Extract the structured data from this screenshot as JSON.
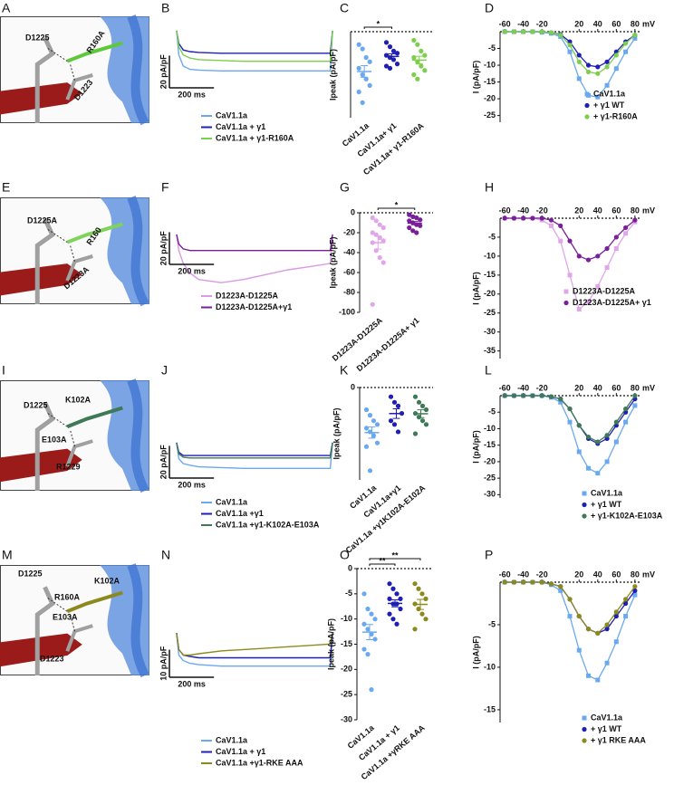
{
  "letters": [
    "A",
    "B",
    "C",
    "D",
    "E",
    "F",
    "G",
    "H",
    "I",
    "J",
    "K",
    "L",
    "M",
    "N",
    "O",
    "P"
  ],
  "structures": [
    {
      "labels": [
        {
          "text": "D1225",
          "color": "#111111"
        },
        {
          "text": "R160A",
          "color": "#5cc93a"
        },
        {
          "text": "D1223",
          "color": "#111111"
        }
      ]
    },
    {
      "labels": [
        {
          "text": "D1225A",
          "color": "#d67ee0"
        },
        {
          "text": "R160",
          "color": "#111111"
        },
        {
          "text": "D1223A",
          "color": "#d67ee0"
        }
      ]
    },
    {
      "labels": [
        {
          "text": "D1225",
          "color": "#111111"
        },
        {
          "text": "K102A",
          "color": "#3e7a55"
        },
        {
          "text": "E103A",
          "color": "#3e8a8a"
        },
        {
          "text": "R1229",
          "color": "#111111"
        }
      ]
    },
    {
      "labels": [
        {
          "text": "D1225",
          "color": "#111111"
        },
        {
          "text": "K102A",
          "color": "#8c8a1e"
        },
        {
          "text": "R160A",
          "color": "#8c8a1e"
        },
        {
          "text": "E103A",
          "color": "#8c8a1e"
        },
        {
          "text": "D1223",
          "color": "#111111"
        }
      ]
    }
  ],
  "chart_data": [
    {
      "type": "trace",
      "x": [
        0,
        10,
        30,
        60,
        100,
        200,
        300,
        400,
        500,
        600,
        690,
        700
      ],
      "xlim": [
        -20,
        720
      ],
      "ylim": [
        -40,
        5
      ],
      "scale_bar": {
        "y": 20,
        "y_label": "20 pA/pF",
        "x": 200,
        "x_label": "200 ms"
      },
      "series": [
        {
          "name": "CaV1.1a",
          "color": "#6aa9f0",
          "values": [
            0,
            -15,
            -22,
            -24,
            -24.5,
            -25,
            -25,
            -25,
            -25,
            -25,
            -25,
            0
          ]
        },
        {
          "name": "CaV1.1a + γ1",
          "color": "#1f1fb5",
          "values": [
            0,
            -8,
            -12,
            -13,
            -13.5,
            -14,
            -14,
            -14,
            -14,
            -14,
            -14,
            0
          ]
        },
        {
          "name": "CaV1.1a + γ1-R160A",
          "color": "#7ccf4a",
          "values": [
            0,
            -10,
            -15,
            -17,
            -18,
            -18.5,
            -19,
            -19,
            -19,
            -19,
            -19,
            0
          ]
        }
      ]
    },
    {
      "type": "strip",
      "ylabel": "Ipeak (pA/pF)",
      "ylim": [
        -40,
        0
      ],
      "zero_line": true,
      "categories": [
        "CaV1.1a",
        "CaV1.1a+ γ1",
        "CaV1.1a+ γ1-R160A"
      ],
      "colors": [
        "#6aa9f0",
        "#1f1fb5",
        "#7ccf4a"
      ],
      "points": [
        [
          -6,
          -8,
          -12,
          -14,
          -17,
          -20,
          -22,
          -25,
          -28,
          -33
        ],
        [
          -5,
          -7,
          -9,
          -10,
          -11,
          -12,
          -13,
          -15,
          -16,
          -17
        ],
        [
          -4,
          -6,
          -9,
          -11,
          -12,
          -14,
          -16,
          -18,
          -20,
          -22
        ]
      ],
      "means": [
        -18.5,
        -11.5,
        -13.2
      ],
      "sems": [
        2.7,
        1.2,
        1.8
      ],
      "significance": [
        {
          "label": "*",
          "between": [
            "CaV1.1a",
            "CaV1.1a+ γ1"
          ]
        }
      ]
    },
    {
      "type": "line",
      "ylabel": "I (pA/pF)",
      "xlabel": "mV",
      "xlim": [
        -65,
        85
      ],
      "ylim": [
        -27,
        0
      ],
      "xticks": [
        -60,
        -40,
        -20,
        20,
        40,
        60,
        80
      ],
      "yticks": [
        -5,
        -10,
        -15,
        -20,
        -25
      ],
      "x": [
        -60,
        -50,
        -40,
        -30,
        -20,
        -10,
        0,
        10,
        20,
        30,
        40,
        50,
        60,
        70,
        80
      ],
      "series": [
        {
          "name": "CaV1.1a",
          "color": "#6aa9f0",
          "marker": "square",
          "values": [
            0,
            0,
            0,
            0,
            -0.2,
            -0.5,
            -1.5,
            -6,
            -14,
            -19,
            -19.5,
            -16,
            -11,
            -6,
            -2
          ]
        },
        {
          "name": "+ γ1 WT",
          "color": "#1f1fb5",
          "marker": "circle",
          "values": [
            0,
            0,
            0,
            0,
            0,
            -0.3,
            -0.8,
            -3,
            -7,
            -10,
            -10.5,
            -9,
            -6,
            -3,
            -1
          ]
        },
        {
          "name": "+ γ1-R160A",
          "color": "#7ccf4a",
          "marker": "circle",
          "values": [
            0,
            0,
            0,
            0,
            0,
            -0.3,
            -1,
            -4,
            -9,
            -12,
            -12.5,
            -10.5,
            -7,
            -3.5,
            -1
          ]
        }
      ]
    },
    {
      "type": "trace",
      "x": [
        0,
        10,
        30,
        60,
        100,
        200,
        300,
        400,
        500,
        600,
        690,
        700
      ],
      "xlim": [
        -20,
        720
      ],
      "ylim": [
        -40,
        5
      ],
      "scale_bar": {
        "y": 20,
        "y_label": "20 pA/pF",
        "x": 200,
        "x_label": "200 ms"
      },
      "series": [
        {
          "name": "D1223A-D1225A",
          "color": "#d99ae3",
          "values": [
            0,
            -10,
            -18,
            -24,
            -28,
            -30,
            -28,
            -25,
            -22,
            -20,
            -18,
            0
          ]
        },
        {
          "name": "D1223A-D1225A+γ1",
          "color": "#7a1f9a",
          "values": [
            0,
            -6,
            -9,
            -10,
            -10,
            -10,
            -10,
            -10,
            -10,
            -10,
            -10,
            0
          ]
        }
      ]
    },
    {
      "type": "strip",
      "ylabel": "Ipeak (pA/pF)",
      "ylim": [
        -100,
        0
      ],
      "yticks": [
        0,
        -20,
        -40,
        -60,
        -80,
        -100
      ],
      "zero_line": true,
      "categories": [
        "D1223A-D1225A",
        "D1223A-D1225A+ γ1"
      ],
      "colors": [
        "#e0a6ea",
        "#7a1f9a"
      ],
      "points": [
        [
          -5,
          -8,
          -12,
          -15,
          -20,
          -22,
          -25,
          -28,
          -30,
          -38,
          -45,
          -50,
          -92
        ],
        [
          -2,
          -4,
          -5,
          -7,
          -8,
          -10,
          -12,
          -13,
          -15,
          -18,
          -20
        ]
      ],
      "means": [
        -30,
        -10.4
      ],
      "sems": [
        6.5,
        1.7
      ],
      "significance": [
        {
          "label": "*",
          "between": [
            "D1223A-D1225A",
            "D1223A-D1225A+ γ1"
          ]
        }
      ]
    },
    {
      "type": "line",
      "ylabel": "I (pA/pF)",
      "xlabel": "mV",
      "xlim": [
        -65,
        85
      ],
      "ylim": [
        -37,
        0
      ],
      "xticks": [
        -60,
        -40,
        -20,
        20,
        40,
        60,
        80
      ],
      "yticks": [
        -5,
        -10,
        -15,
        -20,
        -25,
        -30,
        -35
      ],
      "x": [
        -60,
        -50,
        -40,
        -30,
        -20,
        -10,
        0,
        10,
        20,
        30,
        40,
        50,
        60,
        70,
        80
      ],
      "series": [
        {
          "name": "D1223A-D1225A",
          "color": "#e0a6ea",
          "marker": "square",
          "values": [
            0,
            0,
            0,
            0,
            -0.5,
            -2,
            -6,
            -15,
            -24,
            -22,
            -18,
            -13,
            -8,
            -4,
            -1
          ]
        },
        {
          "name": "D1223A-D1225A+ γ1",
          "color": "#7a1f9a",
          "marker": "circle",
          "values": [
            0,
            0,
            0,
            0,
            0,
            -0.5,
            -2,
            -6,
            -10,
            -11,
            -10,
            -8,
            -5,
            -2.5,
            -0.5
          ]
        }
      ]
    },
    {
      "type": "trace",
      "x": [
        0,
        10,
        30,
        60,
        100,
        200,
        300,
        400,
        500,
        600,
        690,
        700
      ],
      "xlim": [
        -20,
        720
      ],
      "ylim": [
        -40,
        5
      ],
      "scale_bar": {
        "y": 20,
        "y_label": "20 pA/pF",
        "x": 200,
        "x_label": "200 ms"
      },
      "series": [
        {
          "name": "CaV1.1a",
          "color": "#6aa9f0",
          "values": [
            0,
            -10,
            -13,
            -14,
            -15,
            -15.5,
            -16,
            -16,
            -16,
            -16,
            -16,
            0
          ]
        },
        {
          "name": "CaV1.1a +γ1",
          "color": "#1f1fb5",
          "values": [
            0,
            -6,
            -8,
            -8,
            -8,
            -8,
            -8,
            -8,
            -8,
            -8,
            -8,
            0
          ]
        },
        {
          "name": "CaV1.1a +γ1-K102A-E103A",
          "color": "#3e7a55",
          "values": [
            0,
            -7,
            -9,
            -9.5,
            -9.5,
            -9.5,
            -9.5,
            -9.5,
            -9.5,
            -9.5,
            -9.5,
            0
          ]
        }
      ]
    },
    {
      "type": "strip",
      "ylabel": "Ipeak (pA/pF)",
      "ylim": [
        -50,
        0
      ],
      "yticks": [
        0
      ],
      "zero_line": true,
      "categories": [
        "CaV1.1a",
        "CaV1.1a+γ1",
        "CaV1.1a +γ1K102A-E102A"
      ],
      "colors": [
        "#6aa9f0",
        "#1f1fb5",
        "#3e7a55"
      ],
      "points": [
        [
          -12,
          -15,
          -18,
          -20,
          -22,
          -24,
          -26,
          -30,
          -32,
          -45
        ],
        [
          -5,
          -8,
          -10,
          -14,
          -18,
          -20,
          -24
        ],
        [
          -5,
          -8,
          -10,
          -12,
          -14,
          -16,
          -18,
          -20,
          -25
        ]
      ],
      "means": [
        -24.4,
        -14.1,
        -14.2
      ],
      "sems": [
        3,
        2.6,
        2.1
      ],
      "significance": []
    },
    {
      "type": "line",
      "ylabel": "I (pA/pF)",
      "xlabel": "mV",
      "xlim": [
        -65,
        85
      ],
      "ylim": [
        -31,
        0
      ],
      "xticks": [
        -60,
        -40,
        -20,
        20,
        40,
        60,
        80
      ],
      "yticks": [
        -5,
        -10,
        -15,
        -20,
        -25,
        -30
      ],
      "x": [
        -60,
        -50,
        -40,
        -30,
        -20,
        -10,
        0,
        10,
        20,
        30,
        40,
        50,
        60,
        70,
        80
      ],
      "series": [
        {
          "name": "CaV1.1a",
          "color": "#6aa9f0",
          "marker": "square",
          "values": [
            0,
            0,
            0,
            0,
            0,
            -0.5,
            -2,
            -8,
            -17,
            -22,
            -23.5,
            -20,
            -14,
            -8,
            -3
          ]
        },
        {
          "name": "+ γ1 WT",
          "color": "#1f1fb5",
          "marker": "circle",
          "values": [
            0,
            0,
            0,
            0,
            0,
            -0.3,
            -1,
            -4,
            -9,
            -13,
            -14.5,
            -13,
            -9,
            -5,
            -1
          ]
        },
        {
          "name": "+ γ1-K102A-E103A",
          "color": "#3e7a55",
          "marker": "circle",
          "values": [
            0,
            0,
            0,
            0,
            0,
            -0.3,
            -1,
            -4,
            -9,
            -12.5,
            -14,
            -12,
            -8,
            -4,
            0
          ]
        }
      ]
    },
    {
      "type": "trace",
      "x": [
        0,
        10,
        30,
        60,
        100,
        200,
        300,
        400,
        500,
        600,
        690,
        700
      ],
      "xlim": [
        -20,
        720
      ],
      "ylim": [
        -20,
        3
      ],
      "scale_bar": {
        "y": 10,
        "y_label": "10 pA/pF",
        "x": 200,
        "x_label": "200 ms"
      },
      "series": [
        {
          "name": "CaV1.1a",
          "color": "#6aa9f0",
          "values": [
            0,
            -8,
            -10,
            -11,
            -11.5,
            -12,
            -12,
            -12,
            -12,
            -12,
            -12,
            0
          ]
        },
        {
          "name": "CaV1.1a + γ1",
          "color": "#1f1fb5",
          "values": [
            0,
            -6,
            -8,
            -8.5,
            -9,
            -9,
            -9,
            -9,
            -9,
            -9,
            -9,
            0
          ]
        },
        {
          "name": "CaV1.1a +γ1-RKE AAA",
          "color": "#8c8a1e",
          "values": [
            0,
            -6,
            -8,
            -8,
            -7.5,
            -6.5,
            -6,
            -5.5,
            -5,
            -4.5,
            -4,
            0
          ]
        }
      ]
    },
    {
      "type": "strip",
      "ylabel": "Ipeak (pA/pF)",
      "ylim": [
        -30,
        0
      ],
      "yticks": [
        0,
        -5,
        -10,
        -15,
        -20,
        -25,
        -30
      ],
      "zero_line": true,
      "categories": [
        "CaV1.1a",
        "CaV1.1a + γ1",
        "CaV1.1a +γRKE AAA"
      ],
      "colors": [
        "#6aa9f0",
        "#1f1fb5",
        "#8c8a1e"
      ],
      "points": [
        [
          -5,
          -8,
          -9,
          -10,
          -11,
          -12,
          -13,
          -14,
          -16,
          -17,
          -24
        ],
        [
          -3,
          -4,
          -5,
          -6,
          -6,
          -7,
          -7,
          -8,
          -9,
          -10,
          -11
        ],
        [
          -3,
          -4,
          -5,
          -6,
          -7,
          -8,
          -9,
          -10,
          -12
        ]
      ],
      "means": [
        -12.6,
        -6.9,
        -7.1
      ],
      "sems": [
        1.5,
        0.7,
        1
      ],
      "significance": [
        {
          "label": "**",
          "between": [
            "CaV1.1a",
            "CaV1.1a + γ1"
          ]
        },
        {
          "label": "**",
          "between": [
            "CaV1.1a",
            "CaV1.1a +γRKE AAA"
          ]
        }
      ]
    },
    {
      "type": "line",
      "ylabel": "I (pA/pF)",
      "xlabel": "mV",
      "xlim": [
        -65,
        85
      ],
      "ylim": [
        -16.5,
        0
      ],
      "xticks": [
        -60,
        -40,
        -20,
        20,
        40,
        60,
        80
      ],
      "yticks": [
        -5,
        -10,
        -15
      ],
      "x": [
        -60,
        -50,
        -40,
        -30,
        -20,
        -10,
        0,
        10,
        20,
        30,
        40,
        50,
        60,
        70,
        80
      ],
      "series": [
        {
          "name": "CaV1.1a",
          "color": "#6aa9f0",
          "marker": "square",
          "values": [
            0,
            0,
            0,
            0,
            0,
            -0.3,
            -1,
            -4,
            -8,
            -11,
            -11.5,
            -9.5,
            -7,
            -4,
            -1.5
          ]
        },
        {
          "name": "+ γ1 WT",
          "color": "#1f1fb5",
          "marker": "circle",
          "values": [
            0,
            0,
            0,
            0,
            0,
            -0.2,
            -0.5,
            -2,
            -4,
            -5.5,
            -6,
            -5.5,
            -4,
            -2.5,
            -1
          ]
        },
        {
          "name": "+ γ1 RKE AAA",
          "color": "#8c8a1e",
          "marker": "circle",
          "values": [
            0,
            0,
            0,
            0,
            0,
            -0.2,
            -0.5,
            -2,
            -4,
            -5.5,
            -6,
            -5,
            -3.5,
            -2,
            -0.5
          ]
        }
      ]
    }
  ]
}
